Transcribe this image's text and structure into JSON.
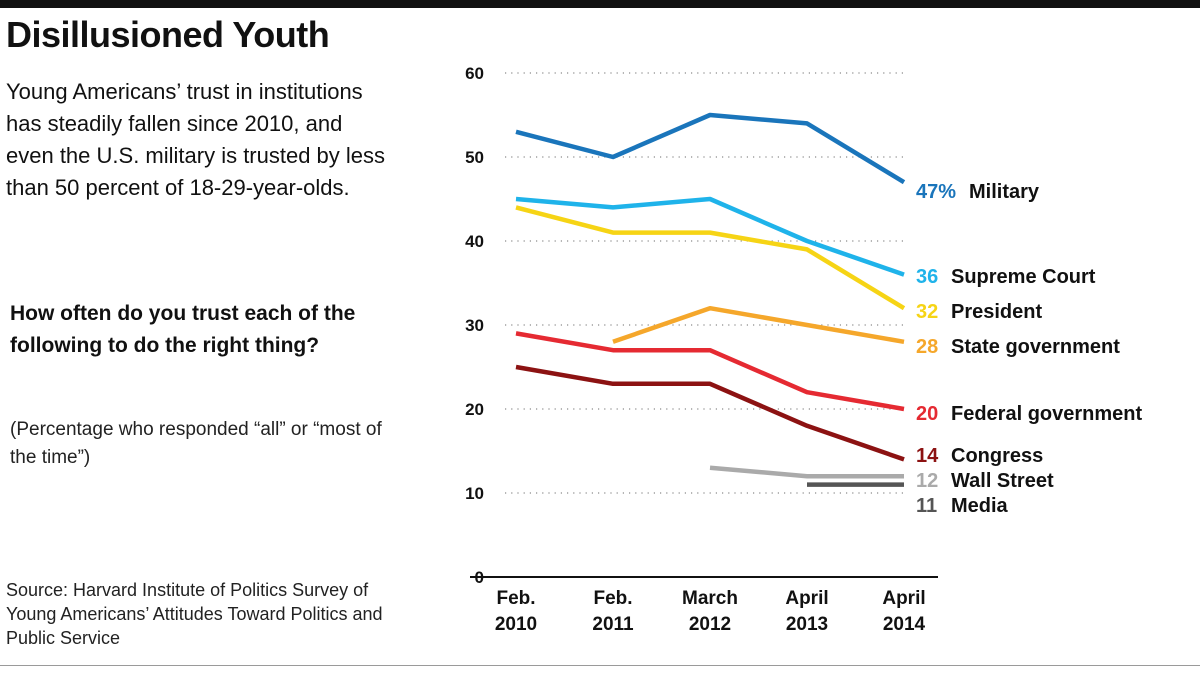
{
  "header": {
    "title": "Disillusioned Youth",
    "subtitle": "Young Americans’ trust in institutions has steadily fallen since 2010, and even the U.S. military is trusted by less than 50 percent of 18-29-year-olds."
  },
  "question": "How often do you trust each of the following to do the right thing?",
  "note": "(Percentage who responded “all” or “most of the time”)",
  "source": "Source: Harvard Institute of Politics Survey of Young Americans’ Attitudes Toward Politics and Public Service",
  "chart_data": {
    "type": "line",
    "x": [
      [
        "Feb.",
        "2010"
      ],
      [
        "Feb.",
        "2011"
      ],
      [
        "March",
        "2012"
      ],
      [
        "April",
        "2013"
      ],
      [
        "April",
        "2014"
      ]
    ],
    "ylim": [
      0,
      60
    ],
    "yticks": [
      0,
      10,
      20,
      30,
      40,
      50,
      60
    ],
    "grid": "dotted horizontal",
    "series": [
      {
        "name": "Military",
        "color": "#1a75bb",
        "values": [
          53,
          50,
          55,
          54,
          47
        ],
        "end_label": "47%"
      },
      {
        "name": "Supreme Court",
        "color": "#1fb3ea",
        "values": [
          45,
          44,
          45,
          40,
          36
        ],
        "end_label": "36"
      },
      {
        "name": "President",
        "color": "#f6d415",
        "values": [
          44,
          41,
          41,
          39,
          32
        ],
        "end_label": "32"
      },
      {
        "name": "State government",
        "color": "#f5a72b",
        "values": [
          null,
          28,
          32,
          30,
          28
        ],
        "end_label": "28"
      },
      {
        "name": "Federal government",
        "color": "#e52a32",
        "values": [
          29,
          27,
          27,
          22,
          20
        ],
        "end_label": "20"
      },
      {
        "name": "Congress",
        "color": "#8c1212",
        "values": [
          25,
          23,
          23,
          18,
          14
        ],
        "end_label": "14"
      },
      {
        "name": "Wall Street",
        "color": "#aaaaaa",
        "values": [
          null,
          null,
          13,
          12,
          12
        ],
        "end_label": "12"
      },
      {
        "name": "Media",
        "color": "#555555",
        "values": [
          null,
          null,
          null,
          11,
          11
        ],
        "end_label": "11"
      }
    ]
  }
}
